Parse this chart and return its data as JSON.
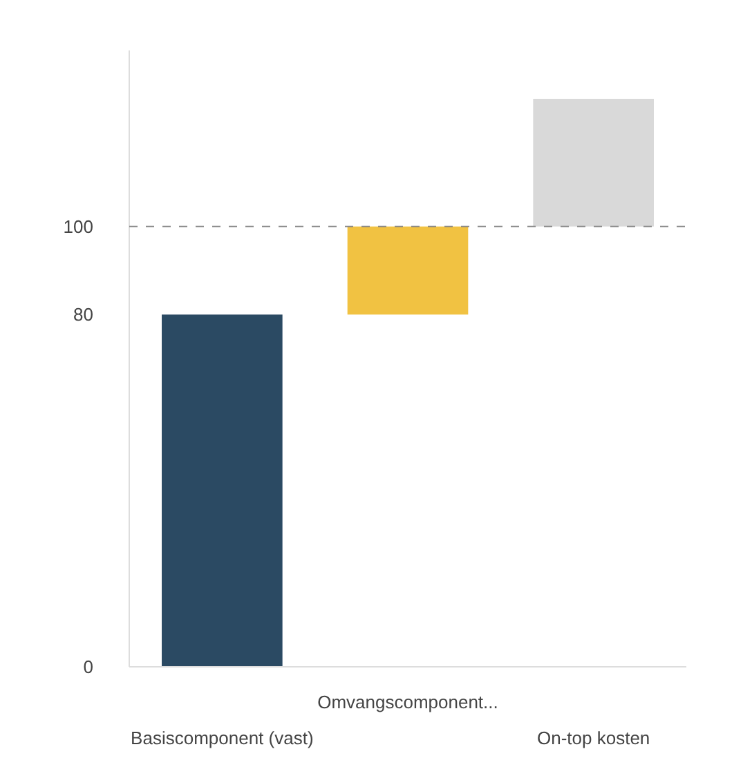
{
  "chart_data": {
    "type": "bar",
    "categories": [
      "Basiscomponent (vast)",
      "Omvangscomponent...",
      "On-top kosten"
    ],
    "values": [
      80,
      20,
      29
    ],
    "base": [
      0,
      80,
      100
    ],
    "colors": [
      "#2b4a63",
      "#f1c242",
      "#d9d9d9"
    ],
    "ylim": [
      0,
      140
    ],
    "yticks": [
      0,
      80,
      100
    ],
    "ref_lines": [
      {
        "axis": "y",
        "value": 100,
        "color": "#888888",
        "line_style": "dashed"
      }
    ],
    "grid": false
  }
}
